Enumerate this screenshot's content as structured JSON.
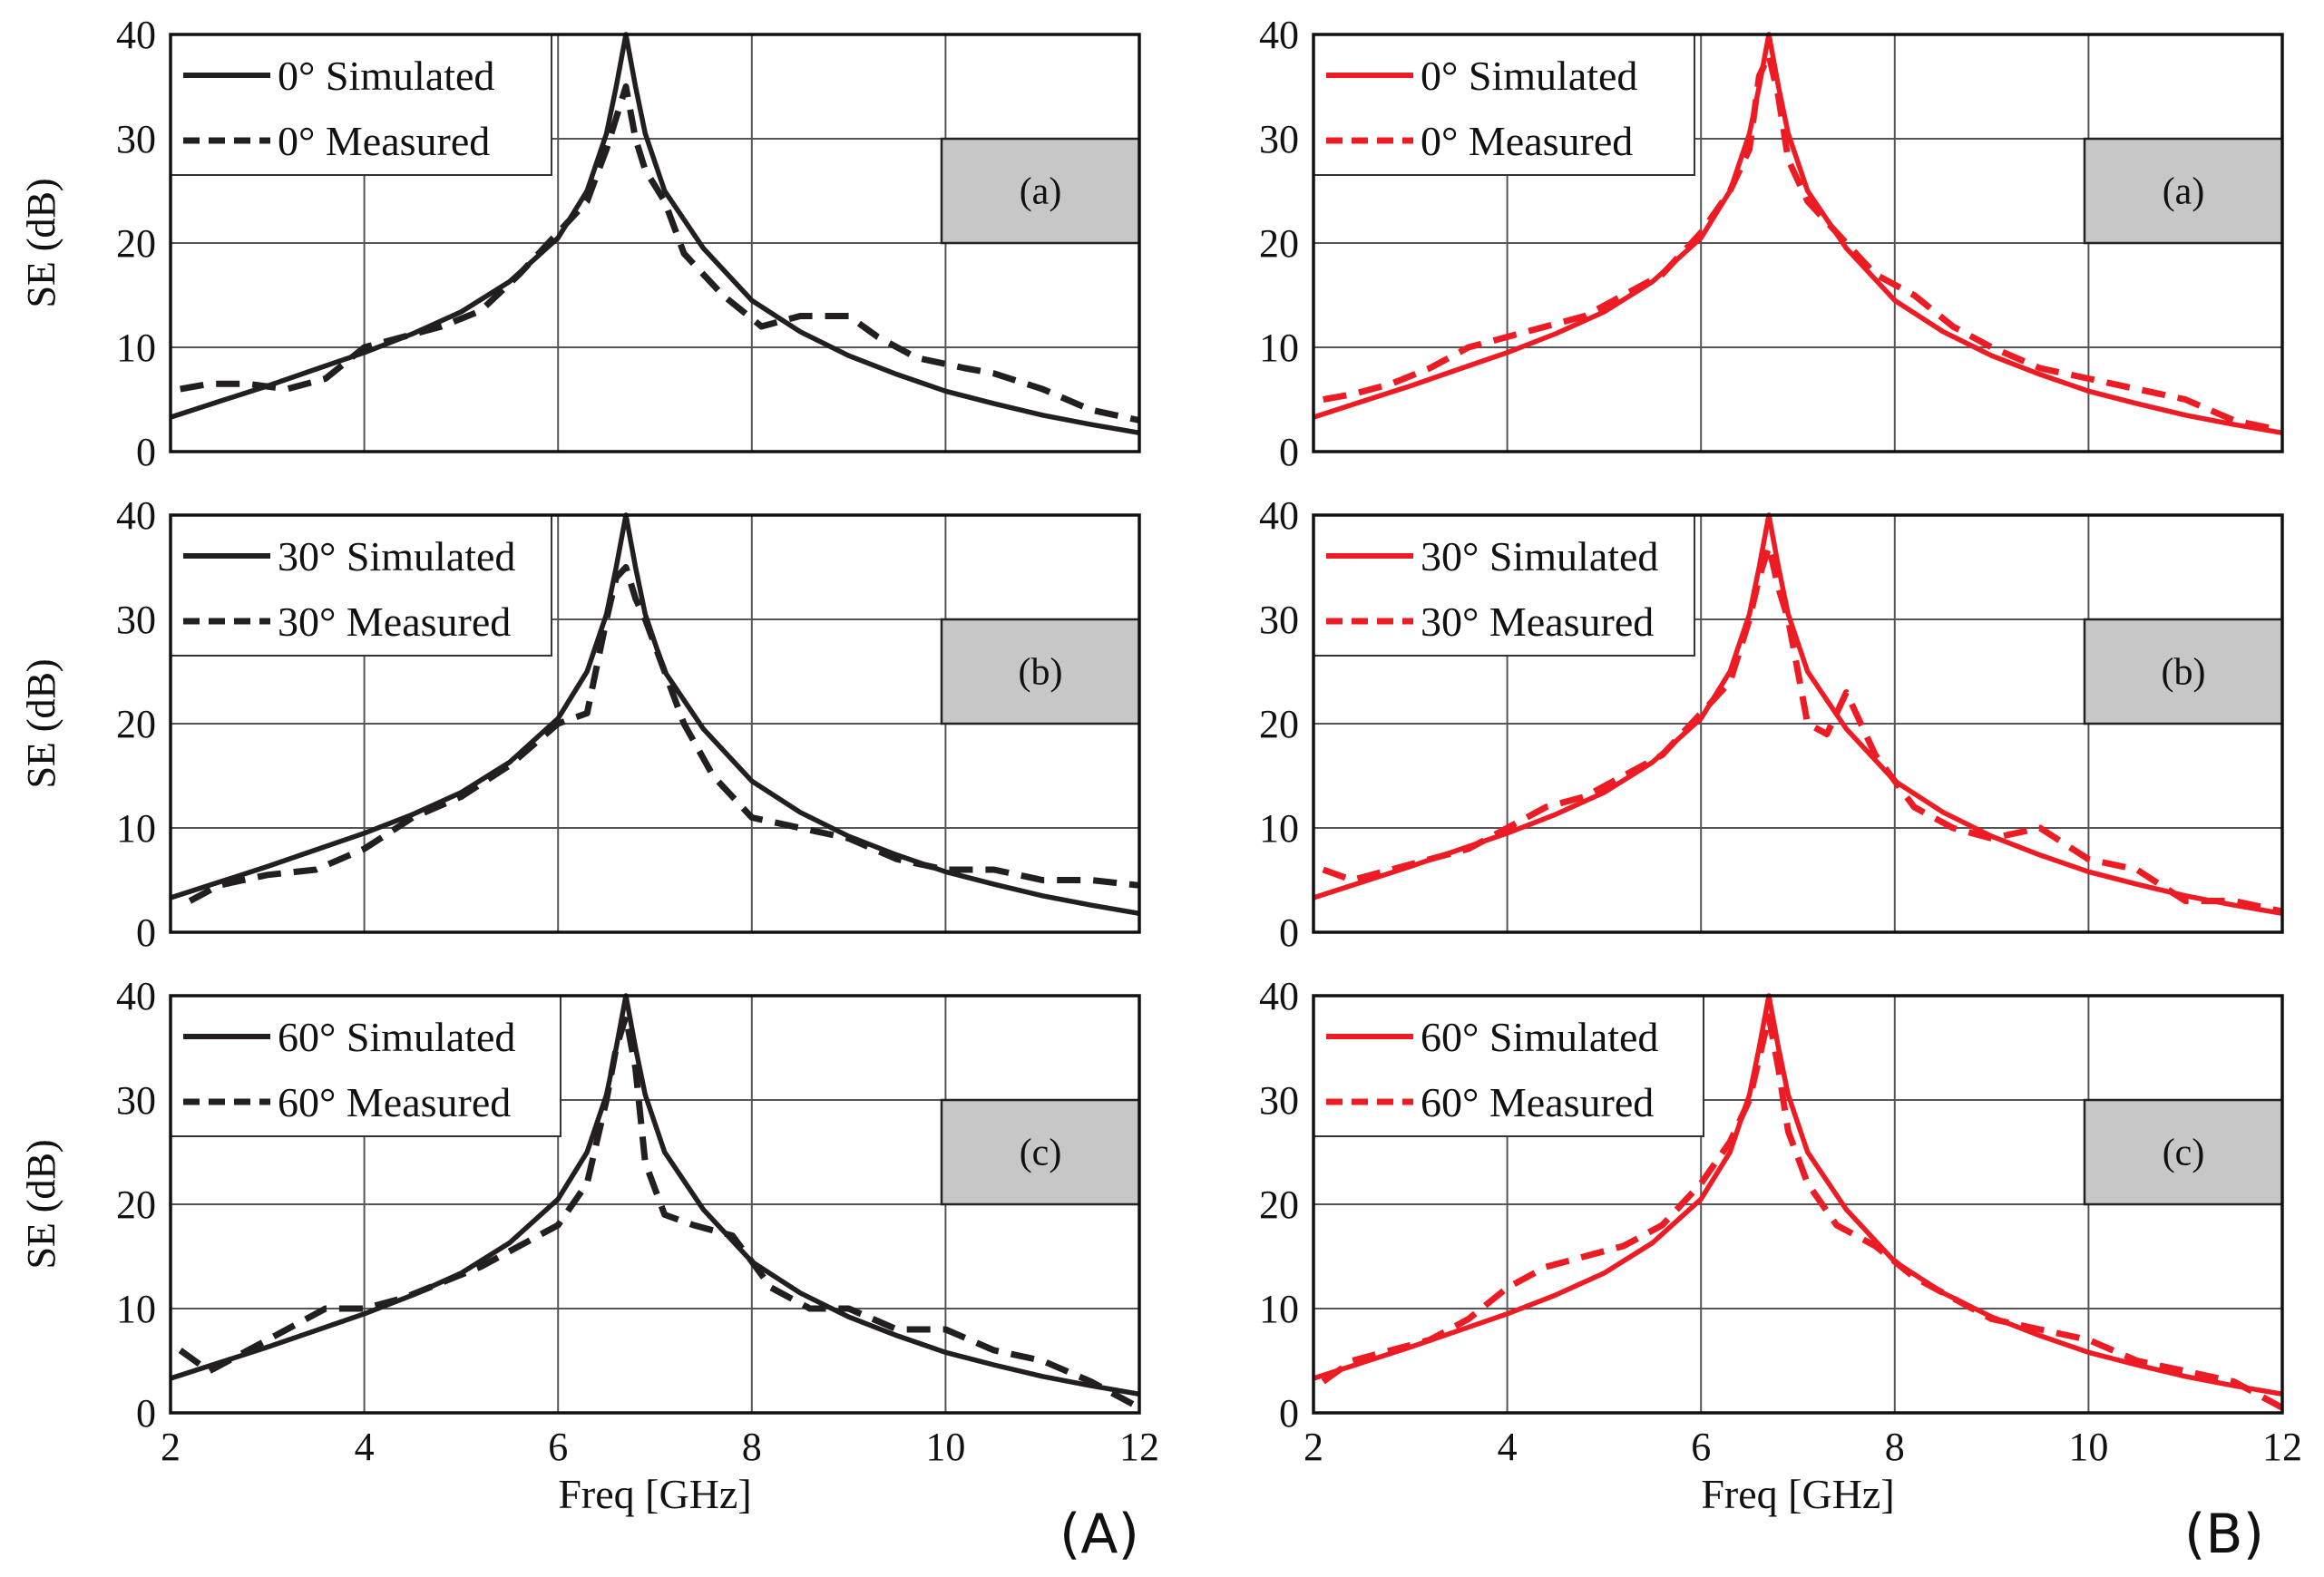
{
  "figure_labels": [
    "(A)",
    "(B)"
  ],
  "colors": {
    "black_series": "#231f20",
    "red_series": "#ed1c24",
    "panel_tag_fill": "#c7c7c8"
  },
  "chart_data": [
    {
      "type": "line",
      "figure": "(A)",
      "panel": "(a)",
      "angle": "0°",
      "xlabel": "",
      "ylabel": "SE (dB)",
      "xlim": [
        2,
        12
      ],
      "ylim": [
        0,
        40
      ],
      "xticks": [],
      "yticks": [
        "0",
        "10",
        "20",
        "30",
        "40"
      ],
      "color": "#231f20",
      "legend": [
        "0° Simulated",
        "0° Measured"
      ],
      "series": [
        {
          "name": "0° Simulated",
          "style": "solid",
          "x": [
            2,
            2.5,
            3,
            3.5,
            4,
            4.5,
            5,
            5.5,
            6,
            6.3,
            6.5,
            6.6,
            6.7,
            6.8,
            6.9,
            7.1,
            7.5,
            8,
            8.5,
            9,
            9.5,
            10,
            10.5,
            11,
            11.5,
            12
          ],
          "y": [
            3.3,
            4.8,
            6.3,
            7.9,
            9.5,
            11.3,
            13.4,
            16.3,
            20.5,
            25,
            30.5,
            35,
            40,
            35,
            30.5,
            25,
            19.5,
            14.5,
            11.5,
            9.2,
            7.4,
            5.8,
            4.6,
            3.5,
            2.6,
            1.8
          ]
        },
        {
          "name": "0° Measured",
          "style": "dashed",
          "x": [
            2.1,
            2.4,
            2.8,
            3.2,
            3.6,
            4,
            4.4,
            4.8,
            5.2,
            5.6,
            6,
            6.3,
            6.5,
            6.6,
            6.7,
            6.8,
            6.9,
            7.1,
            7.3,
            7.7,
            8.1,
            8.5,
            9,
            9.3,
            9.7,
            10.2,
            10.5,
            11,
            11.5,
            12
          ],
          "y": [
            6,
            6.5,
            6.5,
            6,
            7,
            10,
            11,
            12,
            13.5,
            17,
            21,
            24,
            29,
            32,
            35,
            30,
            27,
            24,
            19,
            15,
            12,
            13,
            13,
            11,
            9,
            8,
            7.5,
            6,
            4,
            3
          ]
        }
      ]
    },
    {
      "type": "line",
      "figure": "(A)",
      "panel": "(b)",
      "angle": "30°",
      "xlabel": "",
      "ylabel": "SE (dB)",
      "xlim": [
        2,
        12
      ],
      "ylim": [
        0,
        40
      ],
      "xticks": [],
      "yticks": [
        "0",
        "10",
        "20",
        "30",
        "40"
      ],
      "color": "#231f20",
      "legend": [
        "30° Simulated",
        "30° Measured"
      ],
      "series": [
        {
          "name": "30° Simulated",
          "style": "solid",
          "x": [
            2,
            2.5,
            3,
            3.5,
            4,
            4.5,
            5,
            5.5,
            6,
            6.3,
            6.5,
            6.6,
            6.7,
            6.8,
            6.9,
            7.1,
            7.5,
            8,
            8.5,
            9,
            9.5,
            10,
            10.5,
            11,
            11.5,
            12
          ],
          "y": [
            3.3,
            4.8,
            6.3,
            7.9,
            9.5,
            11.3,
            13.4,
            16.3,
            20.5,
            25,
            30.5,
            35,
            40,
            35,
            30.5,
            25,
            19.5,
            14.5,
            11.5,
            9.2,
            7.4,
            5.8,
            4.6,
            3.5,
            2.6,
            1.8
          ]
        },
        {
          "name": "30° Measured",
          "style": "dashed",
          "x": [
            2.2,
            2.5,
            3,
            3.5,
            4,
            4.5,
            5,
            5.5,
            6,
            6.3,
            6.5,
            6.6,
            6.7,
            6.8,
            6.9,
            7.1,
            7.3,
            7.6,
            8,
            8.5,
            9,
            9.5,
            10,
            10.5,
            11,
            11.5,
            12
          ],
          "y": [
            3,
            4.5,
            5.5,
            6,
            8,
            11,
            13,
            16,
            20,
            21,
            30,
            34,
            35,
            32,
            30,
            25,
            20,
            15,
            11,
            10,
            9,
            7,
            6,
            6,
            5,
            5,
            4.5
          ]
        }
      ]
    },
    {
      "type": "line",
      "figure": "(A)",
      "panel": "(c)",
      "angle": "60°",
      "xlabel": "Freq [GHz]",
      "ylabel": "SE (dB)",
      "xlim": [
        2,
        12
      ],
      "ylim": [
        0,
        40
      ],
      "xticks": [
        "2",
        "4",
        "6",
        "8",
        "10",
        "12"
      ],
      "yticks": [
        "0",
        "10",
        "20",
        "30",
        "40"
      ],
      "color": "#231f20",
      "legend": [
        "60° Simulated",
        "60° Measured"
      ],
      "series": [
        {
          "name": "60° Simulated",
          "style": "solid",
          "x": [
            2,
            2.5,
            3,
            3.5,
            4,
            4.5,
            5,
            5.5,
            6,
            6.3,
            6.5,
            6.6,
            6.7,
            6.8,
            6.9,
            7.1,
            7.5,
            8,
            8.5,
            9,
            9.5,
            10,
            10.5,
            11,
            11.5,
            12
          ],
          "y": [
            3.3,
            4.8,
            6.3,
            7.9,
            9.5,
            11.3,
            13.4,
            16.3,
            20.5,
            25,
            30.5,
            35,
            40,
            35,
            30.5,
            25,
            19.5,
            14.5,
            11.5,
            9.2,
            7.4,
            5.8,
            4.6,
            3.5,
            2.6,
            1.8
          ]
        },
        {
          "name": "60° Measured",
          "style": "dashed",
          "x": [
            2.1,
            2.4,
            2.8,
            3.2,
            3.6,
            4,
            4.4,
            4.8,
            5.2,
            5.6,
            6,
            6.3,
            6.5,
            6.6,
            6.7,
            6.8,
            6.9,
            7.1,
            7.4,
            7.8,
            8.2,
            8.6,
            9,
            9.5,
            10,
            10.5,
            11,
            11.5,
            12
          ],
          "y": [
            6,
            4,
            6,
            8,
            10,
            10,
            11,
            12.5,
            14,
            16,
            18,
            22,
            30,
            35,
            38,
            33,
            24,
            19,
            18,
            17,
            12,
            10,
            10,
            8,
            8,
            6,
            5,
            3,
            0.5
          ]
        }
      ]
    },
    {
      "type": "line",
      "figure": "(B)",
      "panel": "(a)",
      "angle": "0°",
      "xlabel": "",
      "ylabel": "SE (dB)",
      "xlim": [
        2,
        12
      ],
      "ylim": [
        0,
        40
      ],
      "xticks": [],
      "yticks": [
        "0",
        "10",
        "20",
        "30",
        "40"
      ],
      "color": "#ed1c24",
      "legend": [
        "0° Simulated",
        "0° Measured"
      ],
      "series": [
        {
          "name": "0° Simulated",
          "style": "solid",
          "x": [
            2,
            2.5,
            3,
            3.5,
            4,
            4.5,
            5,
            5.5,
            6,
            6.3,
            6.5,
            6.6,
            6.7,
            6.8,
            6.9,
            7.1,
            7.5,
            8,
            8.5,
            9,
            9.5,
            10,
            10.5,
            11,
            11.5,
            12
          ],
          "y": [
            3.3,
            4.8,
            6.3,
            7.9,
            9.5,
            11.3,
            13.4,
            16.3,
            20.5,
            25,
            30.5,
            35,
            40,
            35,
            30.5,
            25,
            19.5,
            14.5,
            11.5,
            9.2,
            7.4,
            5.8,
            4.6,
            3.5,
            2.6,
            1.8
          ]
        },
        {
          "name": "0° Measured",
          "style": "dashed",
          "x": [
            2.1,
            2.4,
            2.8,
            3.2,
            3.6,
            4,
            4.4,
            4.8,
            5.2,
            5.6,
            6,
            6.3,
            6.5,
            6.6,
            6.7,
            6.8,
            6.9,
            7.1,
            7.4,
            7.8,
            8.2,
            8.6,
            9,
            9.5,
            10,
            10.5,
            11,
            11.5,
            12
          ],
          "y": [
            5,
            5.5,
            6.5,
            8,
            10,
            11,
            12,
            13,
            15,
            17,
            21,
            25,
            29,
            36,
            38,
            34,
            28,
            24,
            21,
            17,
            15,
            12,
            10,
            8,
            7,
            6,
            5,
            3,
            2
          ]
        }
      ]
    },
    {
      "type": "line",
      "figure": "(B)",
      "panel": "(b)",
      "angle": "30°",
      "xlabel": "",
      "ylabel": "SE (dB)",
      "xlim": [
        2,
        12
      ],
      "ylim": [
        0,
        40
      ],
      "xticks": [],
      "yticks": [
        "0",
        "10",
        "20",
        "30",
        "40"
      ],
      "color": "#ed1c24",
      "legend": [
        "30° Simulated",
        "30° Measured"
      ],
      "series": [
        {
          "name": "30° Simulated",
          "style": "solid",
          "x": [
            2,
            2.5,
            3,
            3.5,
            4,
            4.5,
            5,
            5.5,
            6,
            6.3,
            6.5,
            6.6,
            6.7,
            6.8,
            6.9,
            7.1,
            7.5,
            8,
            8.5,
            9,
            9.5,
            10,
            10.5,
            11,
            11.5,
            12
          ],
          "y": [
            3.3,
            4.8,
            6.3,
            7.9,
            9.5,
            11.3,
            13.4,
            16.3,
            20.5,
            25,
            30.5,
            35,
            40,
            35,
            30.5,
            25,
            19.5,
            14.5,
            11.5,
            9.2,
            7.4,
            5.8,
            4.6,
            3.5,
            2.6,
            1.8
          ]
        },
        {
          "name": "30° Measured",
          "style": "dashed",
          "x": [
            2.1,
            2.4,
            2.8,
            3.2,
            3.6,
            4,
            4.4,
            4.8,
            5.2,
            5.6,
            6,
            6.3,
            6.5,
            6.6,
            6.7,
            6.8,
            6.9,
            7.1,
            7.3,
            7.5,
            7.8,
            8.2,
            8.6,
            9,
            9.5,
            10,
            10.5,
            11,
            11.5,
            12
          ],
          "y": [
            6,
            5,
            6,
            7,
            8,
            10,
            12,
            13,
            15,
            17,
            21,
            24,
            30,
            34,
            37,
            33,
            30,
            20,
            19,
            23,
            17,
            12,
            10,
            9,
            10,
            7,
            6,
            3,
            3,
            2
          ]
        }
      ]
    },
    {
      "type": "line",
      "figure": "(B)",
      "panel": "(c)",
      "angle": "60°",
      "xlabel": "Freq [GHz]",
      "ylabel": "SE (dB)",
      "xlim": [
        2,
        12
      ],
      "ylim": [
        0,
        40
      ],
      "xticks": [
        "2",
        "4",
        "6",
        "8",
        "10",
        "12"
      ],
      "yticks": [
        "0",
        "10",
        "20",
        "30",
        "40"
      ],
      "color": "#ed1c24",
      "legend": [
        "60° Simulated",
        "60° Measured"
      ],
      "series": [
        {
          "name": "60° Simulated",
          "style": "solid",
          "x": [
            2,
            2.5,
            3,
            3.5,
            4,
            4.5,
            5,
            5.5,
            6,
            6.3,
            6.5,
            6.6,
            6.7,
            6.8,
            6.9,
            7.1,
            7.5,
            8,
            8.5,
            9,
            9.5,
            10,
            10.5,
            11,
            11.5,
            12
          ],
          "y": [
            3.3,
            4.8,
            6.3,
            7.9,
            9.5,
            11.3,
            13.4,
            16.3,
            20.5,
            25,
            30.5,
            35,
            40,
            35,
            30.5,
            25,
            19.5,
            14.5,
            11.5,
            9.2,
            7.4,
            5.8,
            4.6,
            3.5,
            2.6,
            1.8
          ]
        },
        {
          "name": "60° Measured",
          "style": "dashed",
          "x": [
            2.1,
            2.4,
            2.8,
            3.2,
            3.6,
            4,
            4.4,
            4.8,
            5.2,
            5.6,
            6,
            6.3,
            6.5,
            6.6,
            6.7,
            6.8,
            6.9,
            7.1,
            7.4,
            7.8,
            8.2,
            8.6,
            9,
            9.5,
            10,
            10.5,
            11,
            11.5,
            12
          ],
          "y": [
            3,
            5,
            6,
            7,
            9,
            12,
            14,
            15,
            16,
            18,
            22,
            26,
            30,
            34,
            38,
            33,
            27,
            22,
            18,
            16,
            13,
            11,
            9,
            8,
            7,
            5,
            4,
            3,
            0.5
          ]
        }
      ]
    }
  ]
}
